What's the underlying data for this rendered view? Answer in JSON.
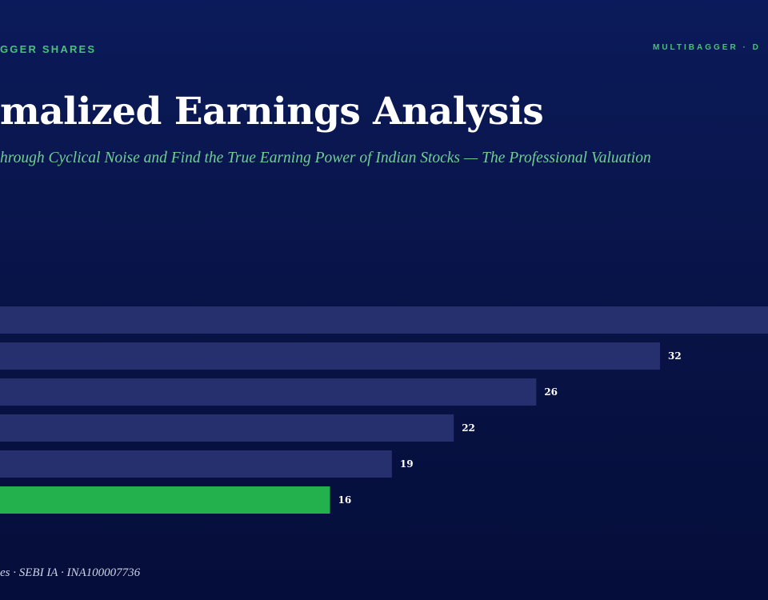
{
  "header": {
    "brand_left": "GGER SHARES",
    "brand_right": "MULTIBAGGER · D",
    "title": "malized Earnings Analysis",
    "subtitle": "hrough Cyclical Noise and Find the True Earning Power of Indian Stocks — The Professional Valuation"
  },
  "footer": {
    "text": "es · SEBI IA · INA100007736"
  },
  "colors": {
    "bar": "#27306e",
    "highlight": "#22b14c",
    "value_label": "#ffffff"
  },
  "chart_data": {
    "type": "bar",
    "orientation": "horizontal",
    "values": [
      null,
      32,
      26,
      22,
      19,
      16
    ],
    "labels": [
      "",
      "32",
      "26",
      "22",
      "19",
      "16"
    ],
    "highlight_index": 5,
    "title": "",
    "xlabel": "",
    "ylabel": "",
    "xlim": [
      0,
      37
    ],
    "grid": false
  }
}
